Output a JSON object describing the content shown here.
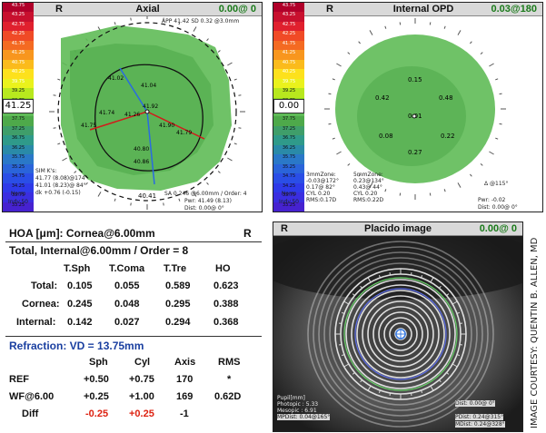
{
  "colors": {
    "green": "#5fbb57",
    "darkgreen": "#3e9a3e",
    "red": "#d21b1b",
    "header": "#d9d9d9"
  },
  "scale_values": [
    "43.75",
    "43.25",
    "42.75",
    "42.25",
    "41.75",
    "41.25",
    "40.75",
    "40.25",
    "39.75",
    "39.25",
    "38.75",
    "38.25",
    "37.75",
    "37.25",
    "36.75",
    "36.25",
    "35.75",
    "35.25",
    "34.75",
    "34.25",
    "33.75",
    "33.25"
  ],
  "axial": {
    "side": "R",
    "title": "Axial",
    "value": "0.00@ 0",
    "top_info": "APP 41.42 SD 0.32 @3.0mm",
    "current": "41.25",
    "labels": [
      "41.02",
      "41.04",
      "41.74",
      "41.75",
      "41.90",
      "41.79",
      "40.80",
      "40.86",
      "41.92",
      "41.26"
    ],
    "bottom_label": "40.41",
    "simk_title": "SIM K's:",
    "simk1": "41.77 (8.08)@174°",
    "simk2": "41.01 (8.23)@ 84°",
    "dk": "dk +0.76 (-0.15)",
    "sa": "SA 0.246 @6.00mm / Order: 4",
    "pwr": "Pwr: 41.49 (8.13)",
    "dist": "Dist: 0.00@ 0°",
    "norm": "Norm",
    "indv": "Indv.50"
  },
  "opd": {
    "side": "R",
    "title": "Internal OPD",
    "value": "0.03@180",
    "current": "0.00",
    "labels": [
      "0.15",
      "0.42",
      "0.48",
      "0.01",
      "0.08",
      "0.22",
      "0.27"
    ],
    "zone3_title": "3mmZone:",
    "zone3": [
      "-0.03@172°",
      "0.17@ 82°",
      "CYL 0.20",
      "RMS:0.17D"
    ],
    "zone5_title": "5mmZone:",
    "zone5": [
      "0.23@134°",
      "0.43@ 44°",
      "CYL 0.20",
      "RMS:0.22D"
    ],
    "delta": "Δ @115°",
    "pwr": "Pwr: -0.02",
    "dist": "Dist: 0.00@ 0°",
    "norm": "Norm",
    "indv": "Indv.50"
  },
  "hoa": {
    "title": "HOA [μm]: Cornea@6.00mm",
    "side": "R",
    "subtitle": "Total, Internal@6.00mm / Order = 8",
    "headers": [
      "T.Sph",
      "T.Coma",
      "T.Tre",
      "HO"
    ],
    "rows": [
      {
        "label": "Total:",
        "values": [
          "0.105",
          "0.055",
          "0.589",
          "0.623"
        ]
      },
      {
        "label": "Cornea:",
        "values": [
          "0.245",
          "0.048",
          "0.295",
          "0.388"
        ]
      },
      {
        "label": "Internal:",
        "values": [
          "0.142",
          "0.027",
          "0.294",
          "0.368"
        ]
      }
    ],
    "refraction_title": "Refraction: VD = 13.75mm",
    "ref_headers": [
      "Sph",
      "Cyl",
      "Axis",
      "RMS"
    ],
    "ref_rows": [
      {
        "label": "REF",
        "values": [
          "+0.50",
          "+0.75",
          "170",
          "*"
        ]
      },
      {
        "label": "WF@6.00",
        "values": [
          "+0.25",
          "+1.00",
          "169",
          "0.62D"
        ]
      },
      {
        "label": "Diff",
        "values": [
          "-0.25",
          "+0.25",
          "-1",
          ""
        ]
      }
    ]
  },
  "placido": {
    "side": "R",
    "title": "Placido image",
    "value": "0.00@ 0",
    "pupil_title": "Pupil[mm]",
    "photopic": "Photopic : 5.33",
    "mesopic": "Mesopic : 6.91",
    "mpd": "MPDist: 0.04@165°",
    "dist_r": "Dist: 0.00@ 0°",
    "pdist": "PDist: 0.24@315°",
    "mdist": "MDist: 0.24@328°"
  },
  "courtesy": "IMAGE COURTESY: QUENTIN B. ALLEN, MD"
}
